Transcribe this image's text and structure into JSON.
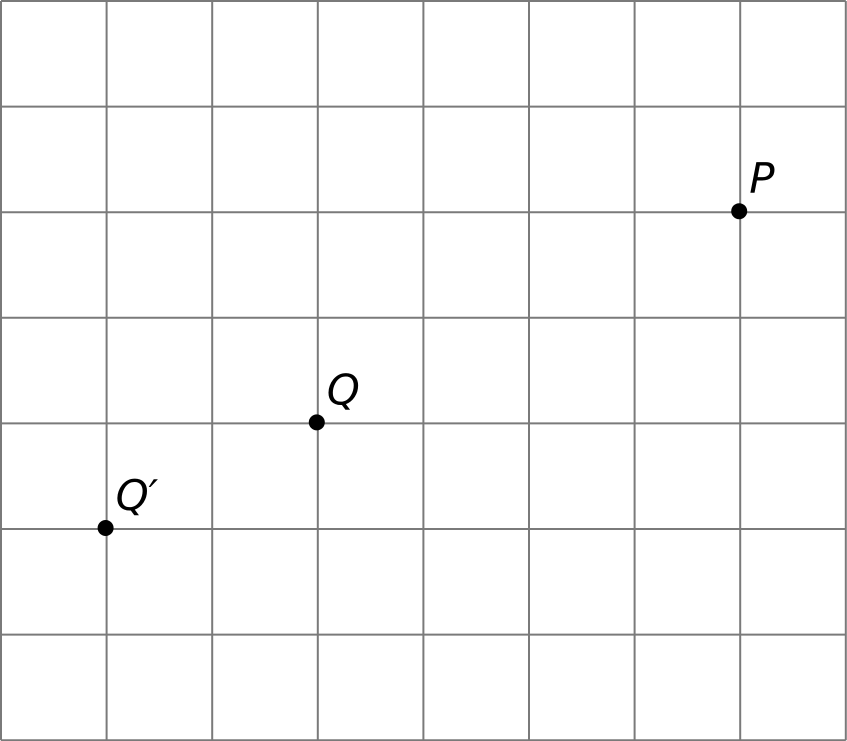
{
  "diagram": {
    "grid": {
      "columns": 8,
      "rows": 7,
      "line_color": "#7a7a7a"
    },
    "points": [
      {
        "id": "P",
        "label": "P"
      },
      {
        "id": "Q",
        "label": "Q"
      },
      {
        "id": "Q-prime",
        "label": "Q′"
      }
    ],
    "point_color": "#000000"
  }
}
